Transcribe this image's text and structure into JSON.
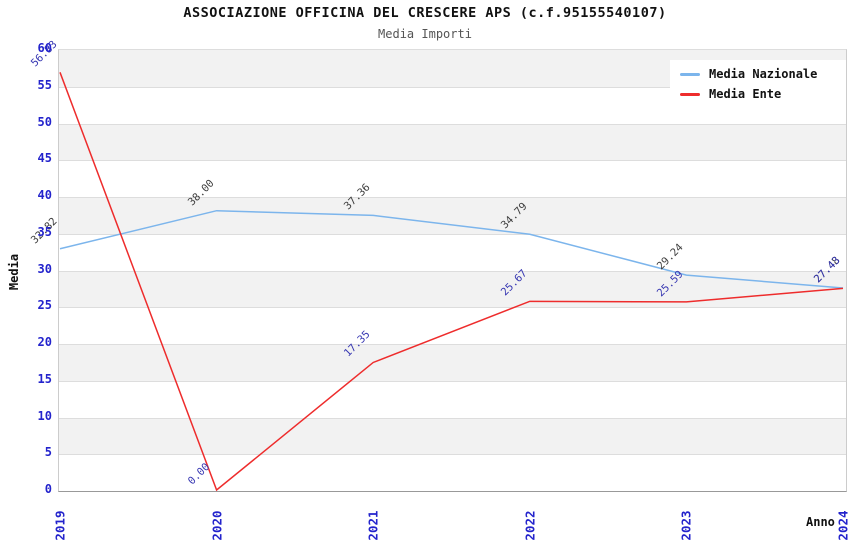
{
  "header": {
    "title": "ASSOCIAZIONE OFFICINA DEL CRESCERE APS (c.f.95155540107)",
    "subtitle": "Media Importi"
  },
  "chart_data": {
    "type": "line",
    "title": "ASSOCIAZIONE OFFICINA DEL CRESCERE APS (c.f.95155540107)",
    "subtitle": "Media Importi",
    "xlabel": "Anno",
    "ylabel": "Media",
    "categories": [
      "2019",
      "2020",
      "2021",
      "2022",
      "2023",
      "2024"
    ],
    "series": [
      {
        "name": "Media Nazionale",
        "color": "#7cb5ec",
        "label_color": "#3d3d3d",
        "values": [
          32.82,
          38.0,
          37.36,
          34.79,
          29.24,
          27.48
        ]
      },
      {
        "name": "Media Ente",
        "color": "#ee2c2c",
        "label_color": "#3737b2",
        "values": [
          56.83,
          0.0,
          17.35,
          25.67,
          25.59,
          27.43
        ]
      }
    ],
    "ylim": [
      0,
      60
    ],
    "ytick_step": 5,
    "grid": true,
    "band_colors": [
      "#ffffff",
      "#f2f2f2"
    ],
    "tick_color": "#2323cc",
    "legend_position": "top-right"
  }
}
